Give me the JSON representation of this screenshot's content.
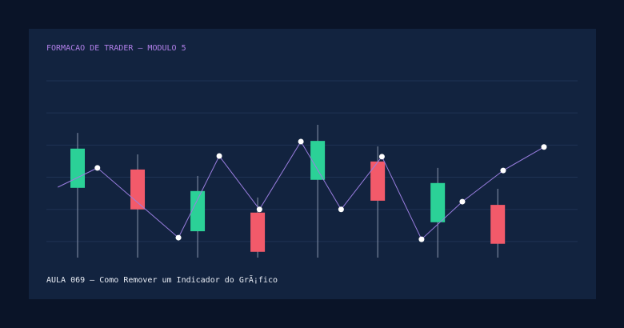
{
  "chart_data": {
    "type": "candlestick",
    "title": "FORMACAO DE TRADER — MODULO 5",
    "subtitle": "AULA 069 — Como Remover um Indicador do GrÃ¡fico",
    "x": [
      0,
      1,
      2,
      3,
      4,
      5,
      6,
      7
    ],
    "open": [
      1.67,
      2.24,
      0.32,
      0.9,
      1.92,
      2.49,
      0.6,
      1.14
    ],
    "high": [
      3.38,
      2.71,
      2.04,
      1.37,
      3.63,
      2.96,
      2.29,
      1.64
    ],
    "low": [
      -0.5,
      -0.5,
      -0.5,
      -0.5,
      -0.5,
      -0.5,
      -0.5,
      -0.5
    ],
    "close": [
      2.89,
      1.0,
      1.57,
      -0.32,
      3.13,
      1.27,
      1.82,
      -0.07
    ],
    "up_color": "#2bd197",
    "down_color": "#f25a6a",
    "overlay": {
      "type": "line",
      "color": "#9a7ee0",
      "x": [
        -0.33,
        0.33,
        1.68,
        2.36,
        3.03,
        3.72,
        4.39,
        5.07,
        5.73,
        6.41,
        7.09,
        7.77
      ],
      "values": [
        1.69,
        2.29,
        0.12,
        2.66,
        1.0,
        3.11,
        1.0,
        2.64,
        0.07,
        1.24,
        2.21,
        2.94
      ]
    },
    "xlim": [
      -0.52,
      8.33
    ],
    "ylim": [
      -0.5,
      5
    ],
    "yticks": [
      0,
      1,
      2,
      3,
      4,
      5
    ],
    "grid": true
  }
}
